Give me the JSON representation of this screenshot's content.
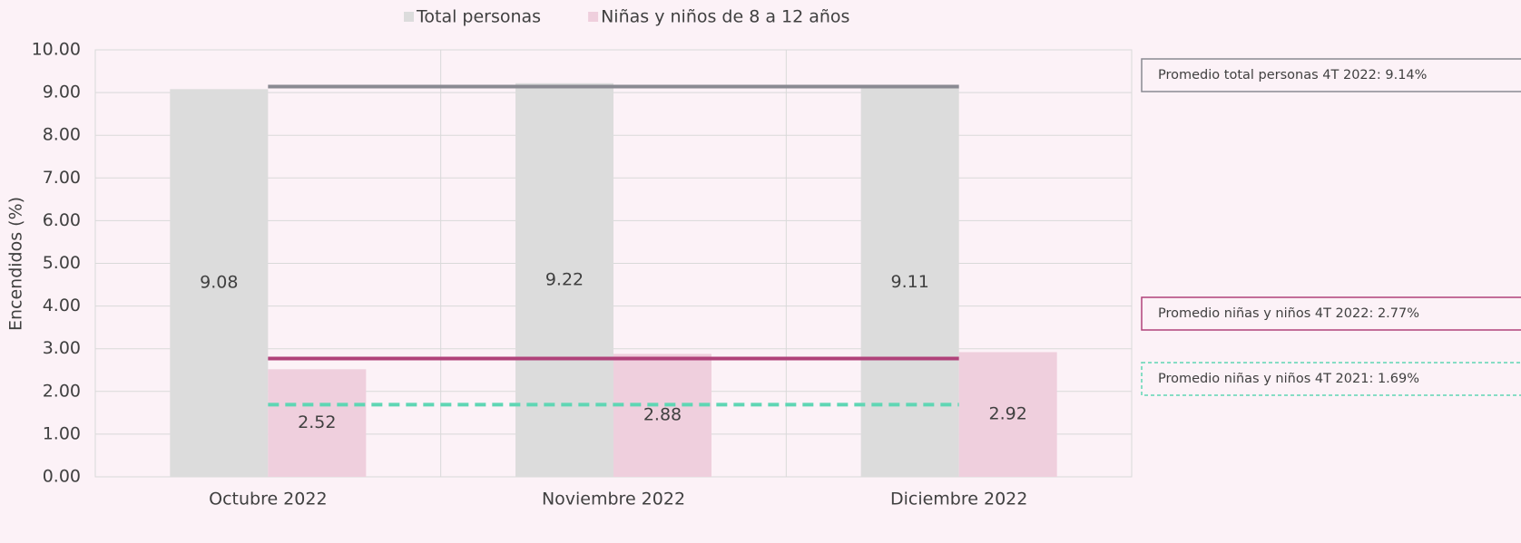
{
  "chart_data": {
    "type": "bar",
    "y_label": "Encendidos (%)",
    "categories": [
      "Octubre 2022",
      "Noviembre 2022",
      "Diciembre 2022"
    ],
    "series": [
      {
        "name": "Total personas",
        "color": "#dcdcdc",
        "values": [
          9.08,
          9.22,
          9.11
        ]
      },
      {
        "name": "Niñas y niños de 8 a 12 años",
        "color": "#efcfdd",
        "values": [
          2.52,
          2.88,
          2.92
        ]
      }
    ],
    "ylim": [
      0,
      10
    ],
    "yticks": [
      {
        "value": 0,
        "label": "0.00"
      },
      {
        "value": 1,
        "label": "1.00"
      },
      {
        "value": 2,
        "label": "2.00"
      },
      {
        "value": 3,
        "label": "3.00"
      },
      {
        "value": 4,
        "label": "4.00"
      },
      {
        "value": 5,
        "label": "5.00"
      },
      {
        "value": 6,
        "label": "6.00"
      },
      {
        "value": 7,
        "label": "7.00"
      },
      {
        "value": 8,
        "label": "8.00"
      },
      {
        "value": 9,
        "label": "9.00"
      },
      {
        "value": 10,
        "label": "10.00"
      }
    ],
    "grid": true,
    "legend": "top",
    "reference_lines": [
      {
        "label": "Promedio total personas 4T 2022: 9.14%",
        "value": 9.14,
        "color": "#8a8a92",
        "style": "solid"
      },
      {
        "label": "Promedio niñas y niños 4T 2022: 2.77%",
        "value": 2.77,
        "color": "#b0427a",
        "style": "solid"
      },
      {
        "label": "Promedio niñas y niños 4T 2021: 1.69%",
        "value": 1.69,
        "color": "#5fd6b4",
        "style": "dashed"
      }
    ]
  }
}
